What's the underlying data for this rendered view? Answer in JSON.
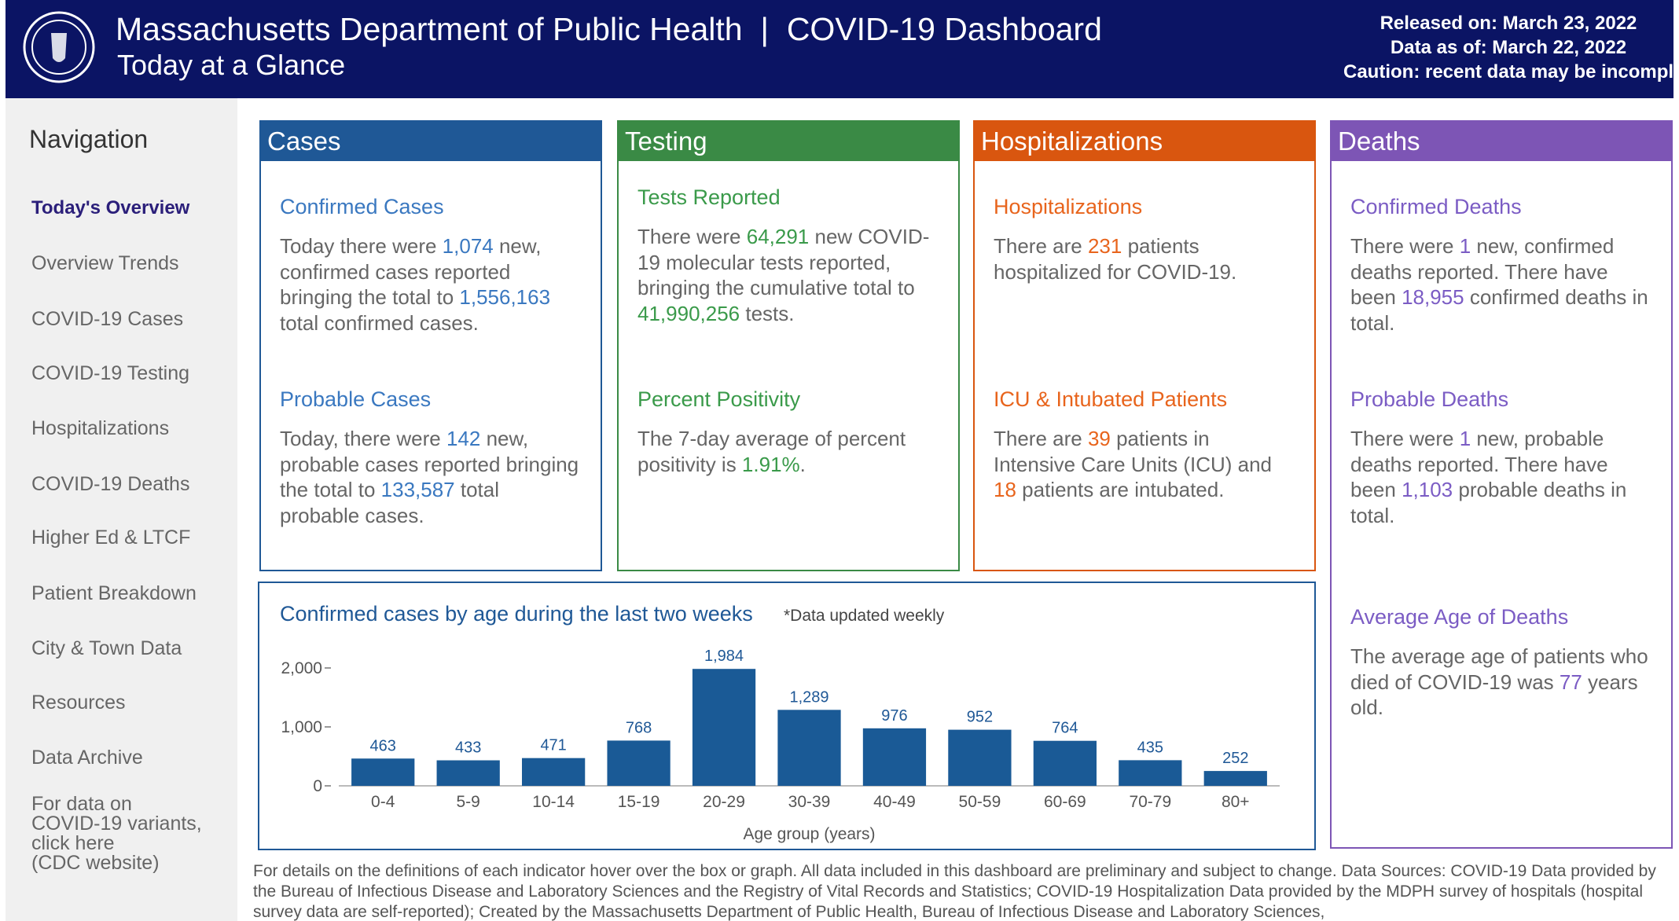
{
  "header": {
    "title": "Massachusetts Department of Public Health  |  COVID-19 Dashboard",
    "subtitle": "Today at a Glance",
    "info": [
      "Released on: March 23, 2022",
      "Data as of: March 22, 2022",
      "Caution: recent data may be incomplete"
    ]
  },
  "nav": {
    "title": "Navigation",
    "items": [
      "Today's Overview",
      "Overview Trends",
      "COVID-19 Cases",
      "COVID-19 Testing",
      "Hospitalizations",
      "COVID-19 Deaths",
      "Higher Ed & LTCF",
      "Patient Breakdown",
      "City & Town Data",
      "Resources",
      "Data Archive"
    ],
    "note": [
      "For data on",
      "COVID-19 variants,",
      "click here",
      "(CDC website)"
    ]
  },
  "panels": [
    {
      "title": "Cases",
      "color": "#1f5896",
      "accent": "#3a78c0",
      "sections": [
        {
          "title": "Confirmed Cases",
          "text": [
            "Today there were ",
            "1,074",
            " new, confirmed cases reported bringing the total to ",
            "1,556,163",
            " total confirmed cases."
          ]
        },
        {
          "title": "Probable Cases",
          "text": [
            "Today, there were ",
            "142",
            " new, probable cases reported bringing the total to ",
            "133,587",
            " total probable cases."
          ]
        }
      ]
    },
    {
      "title": "Testing",
      "color": "#3a8a45",
      "accent": "#3a9a4a",
      "sections": [
        {
          "title": "Tests Reported",
          "text": [
            "There were ",
            "64,291",
            " new COVID-19 molecular tests reported, bringing the cumulative total to ",
            "41,990,256",
            " tests."
          ]
        },
        {
          "title": "Percent Positivity",
          "text": [
            "The 7-day average of percent positivity is ",
            "1.91%",
            "."
          ]
        }
      ]
    },
    {
      "title": "Hospitalizations",
      "color": "#d9560f",
      "accent": "#e8641c",
      "sections": [
        {
          "title": "Hospitalizations",
          "text": [
            "There are ",
            "231",
            " patients hospitalized for COVID-19."
          ]
        },
        {
          "title": "ICU & Intubated Patients",
          "text": [
            "There are ",
            "39",
            " patients in Intensive Care Units (ICU) and ",
            "18",
            " patients are intubated."
          ]
        }
      ]
    },
    {
      "title": "Deaths",
      "color": "#7d55b5",
      "accent": "#7b5cc4",
      "sections": [
        {
          "title": "Confirmed Deaths",
          "text": [
            "There were ",
            "1",
            " new, confirmed deaths reported. There have been ",
            "18,955",
            " confirmed deaths in total."
          ]
        },
        {
          "title": "Probable Deaths",
          "text": [
            "There were ",
            "1",
            " new, probable deaths reported. There have been ",
            "1,103",
            " probable deaths in total."
          ]
        },
        {
          "title": "Average Age of Deaths",
          "text": [
            "The average age of patients who died of COVID-19 was ",
            "77",
            " years old."
          ]
        }
      ]
    }
  ],
  "chart_data": {
    "type": "bar",
    "title": "Confirmed cases by age during the last two weeks",
    "note": "*Data updated weekly",
    "x_label": "Age group (years)",
    "categories": [
      "0-4",
      "5-9",
      "10-14",
      "15-19",
      "20-29",
      "30-39",
      "40-49",
      "50-59",
      "60-69",
      "70-79",
      "80+"
    ],
    "values": [
      463,
      433,
      471,
      768,
      1984,
      1289,
      976,
      952,
      764,
      435,
      252
    ],
    "value_labels": [
      "463",
      "433",
      "471",
      "768",
      "1,984",
      "1,289",
      "976",
      "952",
      "764",
      "435",
      "252"
    ],
    "color": "#1a5a96",
    "ylim": [
      0,
      2200
    ],
    "yticks": [
      0,
      {
        "value": 1000,
        "label": "1,000"
      },
      {
        "value": 2000,
        "label": "2,000"
      }
    ]
  },
  "footer": "For details on the definitions of each indicator hover over the box or graph. All data included in this dashboard are preliminary and subject to change. Data Sources: COVID-19 Data provided by the Bureau of Infectious Disease and Laboratory Sciences and the Registry of Vital Records and Statistics; COVID-19 Hospitalization Data provided by the MDPH survey of hospitals (hospital survey data are self-reported); Created by the Massachusetts Department of Public Health, Bureau of Infectious Disease and Laboratory Sciences,"
}
